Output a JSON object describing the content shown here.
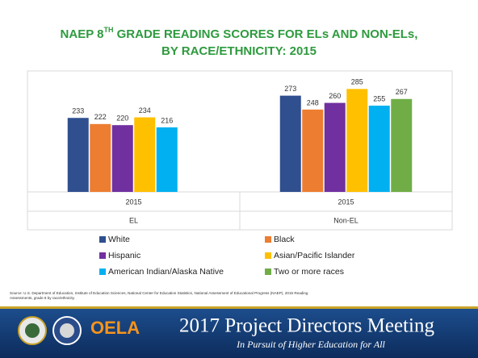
{
  "chart_data": {
    "type": "bar",
    "title": [
      "NAEP 8",
      "TH",
      " GRADE READING SCORES FOR ELs AND NON-ELs,",
      "BY RACE/ETHNICITY: 2015"
    ],
    "periods": [
      "2015",
      "2015"
    ],
    "categories": [
      "EL",
      "Non-EL"
    ],
    "ylim": [
      100,
      300
    ],
    "series": [
      {
        "name": "White",
        "color": "#2f4f8f",
        "values": [
          233,
          273
        ]
      },
      {
        "name": "Black",
        "color": "#ed7d31",
        "values": [
          222,
          248
        ]
      },
      {
        "name": "Hispanic",
        "color": "#7030a0",
        "values": [
          220,
          260
        ]
      },
      {
        "name": "Asian/Pacific Islander",
        "color": "#ffc000",
        "values": [
          234,
          285
        ]
      },
      {
        "name": "American Indian/Alaska Native",
        "color": "#00b0f0",
        "values": [
          216,
          255
        ]
      },
      {
        "name": "Two or more races",
        "color": "#70ad47",
        "values": [
          null,
          267
        ]
      }
    ]
  },
  "source": [
    "Source: U.S. Department of Education, Institute of Education Sciences, National Center for Education Statistics, National Assessment of Educational Progress (NAEP), 2015 Reading",
    "Assessments, grade 8 by race/ethnicity."
  ],
  "banner": {
    "logo": "OELA",
    "title": "2017 Project Directors Meeting",
    "subtitle": "In Pursuit of Higher Education for All"
  }
}
